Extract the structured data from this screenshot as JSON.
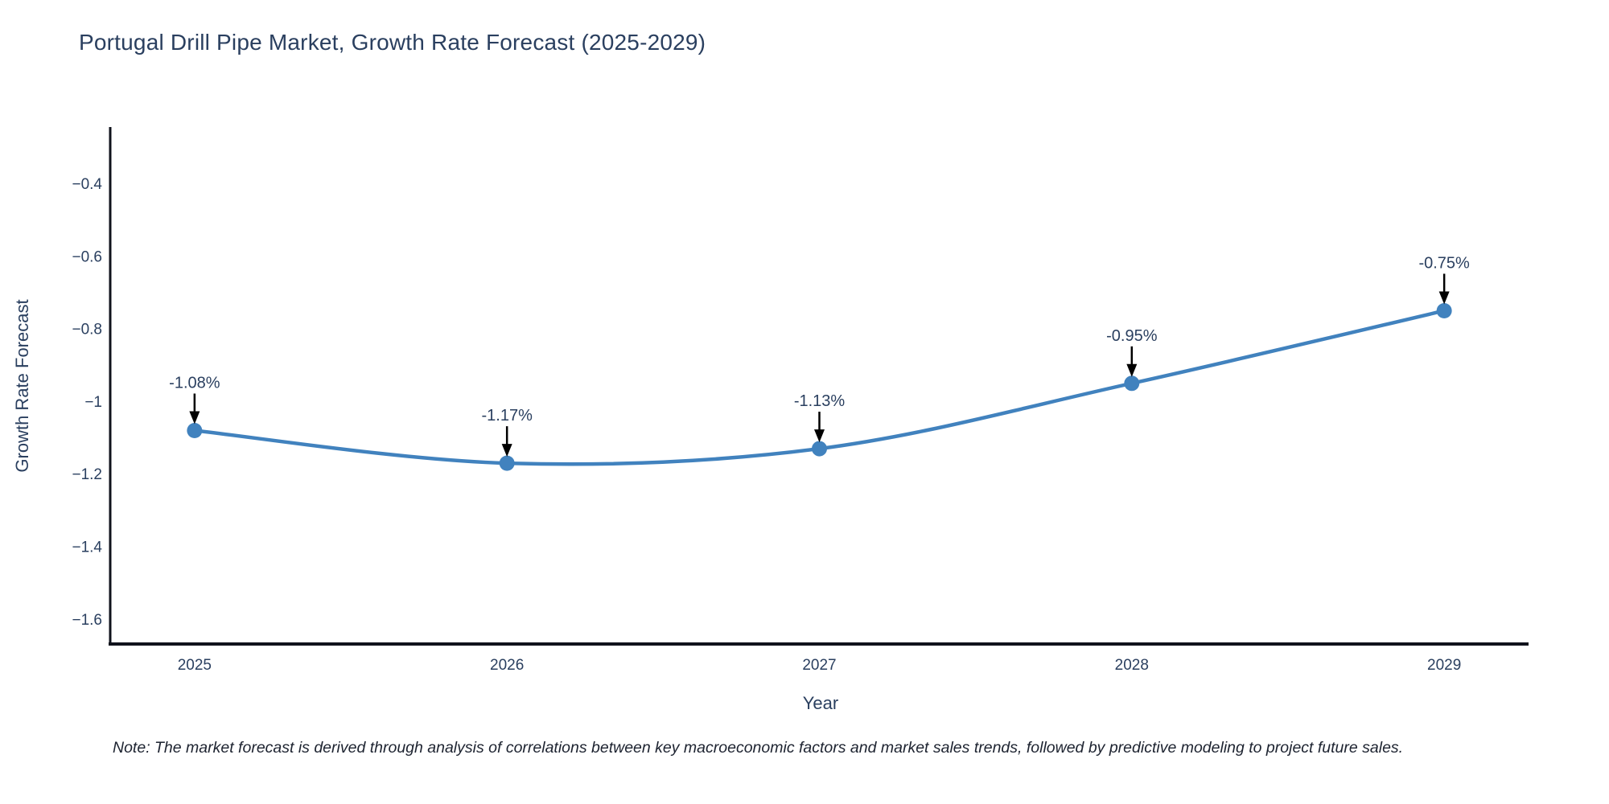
{
  "title": {
    "text": "Portugal Drill Pipe Market, Growth Rate Forecast (2025-2029)"
  },
  "note": {
    "text": "Note: The market forecast is derived through analysis of correlations between key macroeconomic factors and market sales trends, followed by predictive modeling to project future sales."
  },
  "chart_data": {
    "type": "line",
    "title": "Portugal Drill Pipe Market, Growth Rate Forecast (2025-2029)",
    "xlabel": "Year",
    "ylabel": "Growth Rate Forecast",
    "line_shape": "spline",
    "grid": false,
    "legend": "none",
    "x": [
      2025,
      2026,
      2027,
      2028,
      2029
    ],
    "y": [
      -1.08,
      -1.17,
      -1.13,
      -0.95,
      -0.75
    ],
    "point_labels": [
      "-1.08%",
      "-1.17%",
      "-1.13%",
      "-0.95%",
      "-0.75%"
    ],
    "xlim": [
      2024.73,
      2029.27
    ],
    "ylim": [
      -1.668,
      -0.244
    ],
    "xticks": [
      {
        "value": 2025,
        "label": "2025"
      },
      {
        "value": 2026,
        "label": "2026"
      },
      {
        "value": 2027,
        "label": "2027"
      },
      {
        "value": 2028,
        "label": "2028"
      },
      {
        "value": 2029,
        "label": "2029"
      }
    ],
    "yticks": [
      {
        "value": -0.4,
        "label": "−0.4"
      },
      {
        "value": -0.6,
        "label": "−0.6"
      },
      {
        "value": -0.8,
        "label": "−0.8"
      },
      {
        "value": -1.0,
        "label": "−1"
      },
      {
        "value": -1.2,
        "label": "−1.2"
      },
      {
        "value": -1.4,
        "label": "−1.4"
      },
      {
        "value": -1.6,
        "label": "−1.6"
      }
    ],
    "colors": {
      "line": "#4182be",
      "marker": "#4182be",
      "arrow": "#000000",
      "axis": "#10131c",
      "text": "#2a3f5f"
    }
  }
}
